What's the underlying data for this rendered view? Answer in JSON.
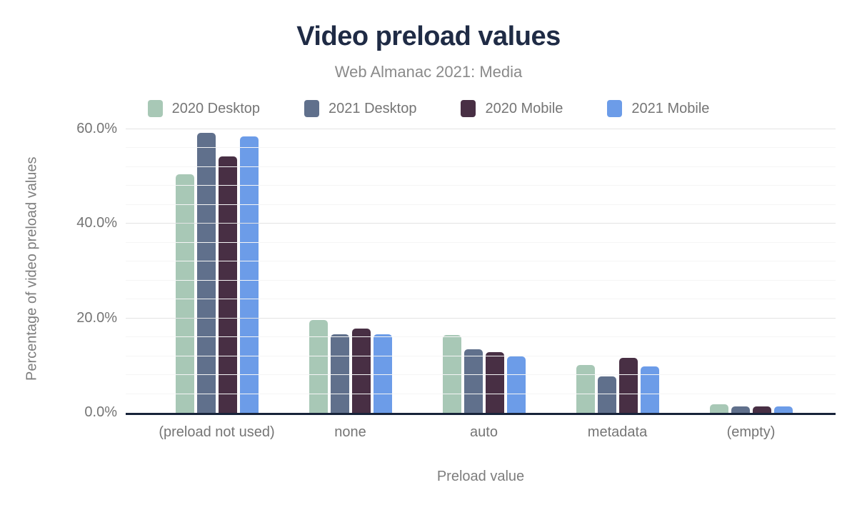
{
  "header": {
    "title": "Video preload values",
    "subtitle": "Web Almanac 2021: Media"
  },
  "chart_data": {
    "type": "bar",
    "title": "Video preload values",
    "subtitle": "Web Almanac 2021: Media",
    "categories": [
      "(preload not used)",
      "none",
      "auto",
      "metadata",
      "(empty)"
    ],
    "series": [
      {
        "name": "2020 Desktop",
        "color": "#a8c8b6",
        "values": [
          50.5,
          19.7,
          16.4,
          10.1,
          1.8
        ]
      },
      {
        "name": "2021 Desktop",
        "color": "#60708c",
        "values": [
          59.2,
          16.6,
          13.4,
          7.7,
          1.4
        ]
      },
      {
        "name": "2020 Mobile",
        "color": "#482f44",
        "values": [
          54.2,
          17.9,
          12.8,
          11.6,
          1.4
        ]
      },
      {
        "name": "2021 Mobile",
        "color": "#6c9ce8",
        "values": [
          58.5,
          16.6,
          11.9,
          9.8,
          1.4
        ]
      }
    ],
    "xlabel": "Preload value",
    "ylabel": "Percentage of video preload values",
    "y_ticks": [
      {
        "value": 0,
        "label": "0.0%"
      },
      {
        "value": 20,
        "label": "20.0%"
      },
      {
        "value": 40,
        "label": "40.0%"
      },
      {
        "value": 60,
        "label": "60.0%"
      }
    ],
    "ylim": [
      0,
      60
    ],
    "grid": {
      "minor_step_pct": 4,
      "major_step_pct": 20,
      "visible": true
    },
    "legend_position": "top",
    "colors": {
      "title_text": "#1f2b45",
      "subtitle_text": "#8a8a8a",
      "axis_text": "#757575",
      "baseline": "#172339",
      "grid_major": "#e3e3e3",
      "grid_minor": "#f5f5f5",
      "background": "#ffffff"
    }
  }
}
